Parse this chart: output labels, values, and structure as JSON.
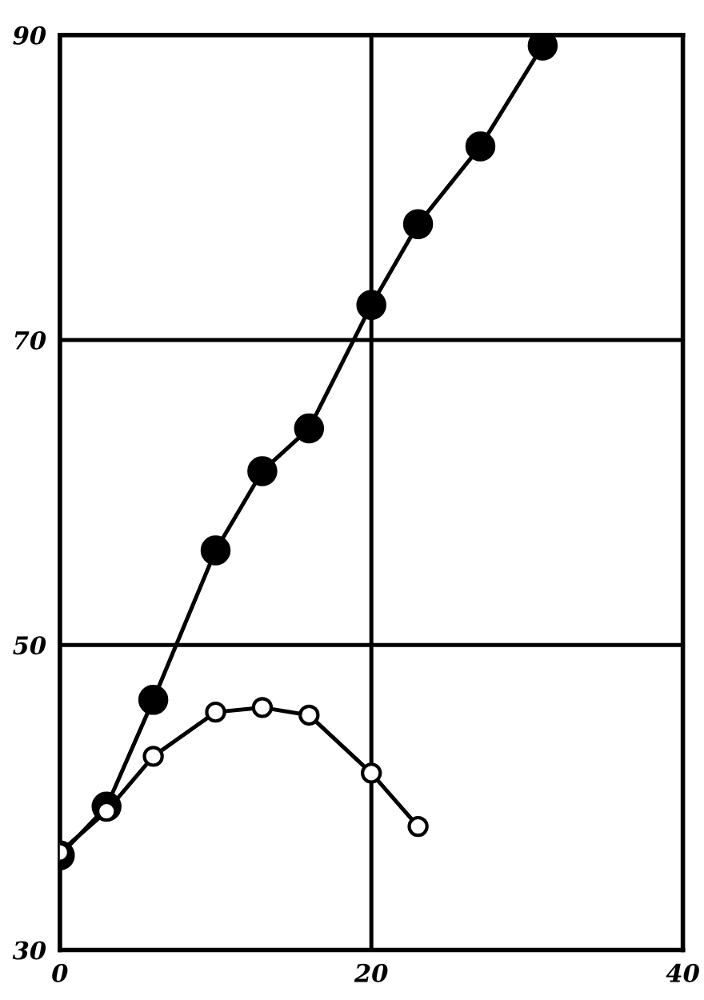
{
  "chart_data": {
    "type": "line",
    "xlim": [
      0,
      40
    ],
    "ylim": [
      30,
      90
    ],
    "xticks": [
      0,
      20,
      40
    ],
    "yticks": [
      30,
      50,
      70,
      90
    ],
    "grid": true,
    "marker": "circle",
    "line_style": "solid",
    "series": [
      {
        "color": "#000000",
        "x": [
          0,
          3,
          6,
          10,
          13,
          16,
          20,
          23,
          27,
          31
        ],
        "values": [
          36.2,
          39.4,
          46.4,
          56.2,
          61.4,
          64.2,
          72.3,
          77.6,
          82.7,
          89.3
        ]
      },
      {
        "color": "#ffffff",
        "x": [
          0,
          3,
          6,
          10,
          13,
          16,
          20,
          23
        ],
        "values": [
          36.4,
          39.1,
          42.7,
          45.6,
          45.9,
          45.4,
          41.6,
          38.1
        ]
      }
    ]
  }
}
